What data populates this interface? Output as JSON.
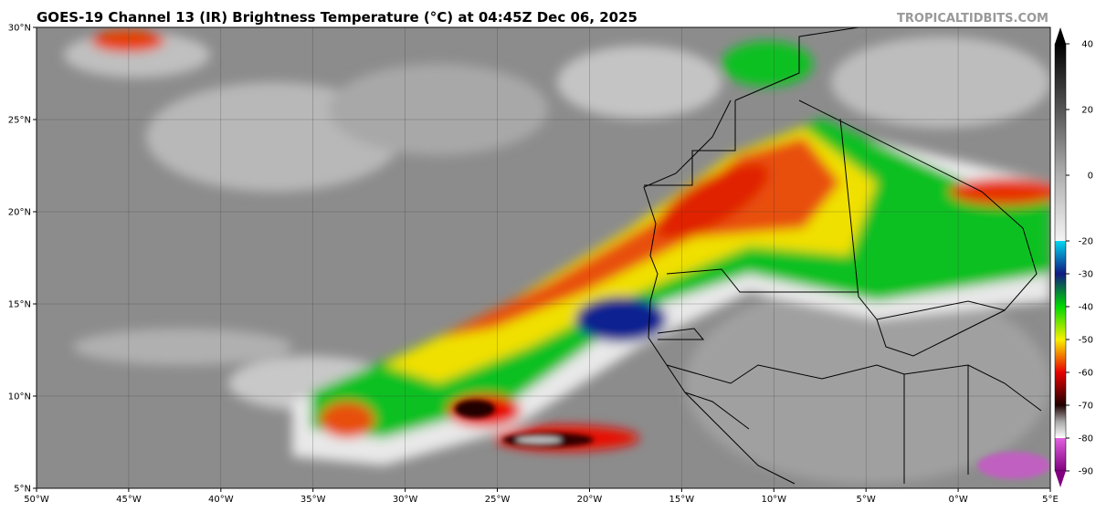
{
  "map": {
    "title": "GOES-19 Channel 13 (IR) Brightness Temperature (°C) at 04:45Z Dec 06, 2025",
    "credit": "TROPICALTIDBITS.COM",
    "xlim": [
      -50,
      5
    ],
    "ylim": [
      5,
      30
    ],
    "xticks": [
      {
        "value": -50,
        "label": "50°W"
      },
      {
        "value": -45,
        "label": "45°W"
      },
      {
        "value": -40,
        "label": "40°W"
      },
      {
        "value": -35,
        "label": "35°W"
      },
      {
        "value": -30,
        "label": "30°W"
      },
      {
        "value": -25,
        "label": "25°W"
      },
      {
        "value": -20,
        "label": "20°W"
      },
      {
        "value": -15,
        "label": "15°W"
      },
      {
        "value": -10,
        "label": "10°W"
      },
      {
        "value": -5,
        "label": "5°W"
      },
      {
        "value": 0,
        "label": "0°W"
      },
      {
        "value": 5,
        "label": "5°E"
      }
    ],
    "yticks": [
      {
        "value": 5,
        "label": "5°N"
      },
      {
        "value": 10,
        "label": "10°N"
      },
      {
        "value": 15,
        "label": "15°N"
      },
      {
        "value": 20,
        "label": "20°N"
      },
      {
        "value": 25,
        "label": "25°N"
      },
      {
        "value": 30,
        "label": "30°N"
      }
    ],
    "colorbar": {
      "clim": [
        -90,
        40
      ],
      "ticks": [
        40,
        20,
        0,
        -20,
        -30,
        -40,
        -50,
        -60,
        -70,
        -80,
        -90
      ],
      "stops": [
        {
          "value": 40,
          "color": "#000000"
        },
        {
          "value": 20,
          "color": "#555555"
        },
        {
          "value": 0,
          "color": "#b0b0b0"
        },
        {
          "value": -20,
          "color": "#f4f4f4"
        },
        {
          "value": -20,
          "color": "#00d8f0"
        },
        {
          "value": -30,
          "color": "#101a80"
        },
        {
          "value": -40,
          "color": "#00d800"
        },
        {
          "value": -50,
          "color": "#f8f000"
        },
        {
          "value": -60,
          "color": "#e80000"
        },
        {
          "value": -70,
          "color": "#200000"
        },
        {
          "value": -75,
          "color": "#a8a8a8"
        },
        {
          "value": -80,
          "color": "#ffffff"
        },
        {
          "value": -80,
          "color": "#e060e0"
        },
        {
          "value": -90,
          "color": "#800080"
        }
      ]
    }
  }
}
